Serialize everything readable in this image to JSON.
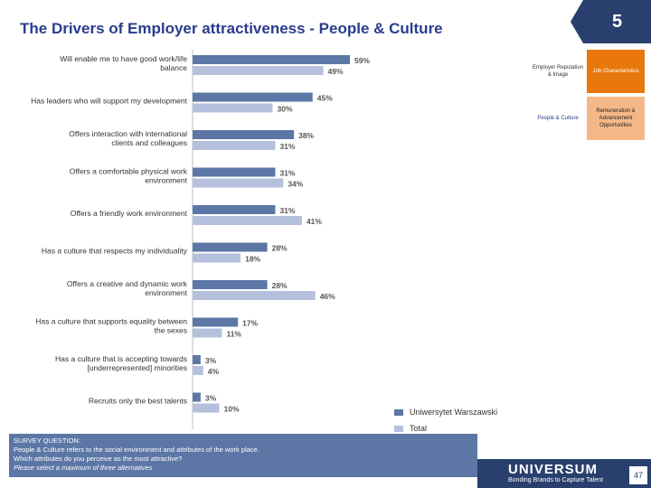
{
  "title": "The Drivers of Employer attractiveness - People & Culture",
  "page_badge": "5",
  "category_grid": [
    {
      "label": "Employer Reputation & Image",
      "style": "white"
    },
    {
      "label": "Job Characteristics",
      "style": "orange"
    },
    {
      "label": "People & Culture",
      "style": "white-blue"
    },
    {
      "label": "Remuneration & Advancement Opportunities",
      "style": "peach"
    }
  ],
  "chart_data": {
    "type": "bar",
    "orientation": "horizontal",
    "categories": [
      "Will enable me to have good work/life balance",
      "Has leaders who will support my development",
      "Offers interaction with international clients and colleagues",
      "Offers a comfortable physical work environment",
      "Offers a friendly work environment",
      "Has a culture that respects my individuality",
      "Offers a creative and dynamic work environment",
      "Has a culture that supports equality between the sexes",
      "Has a culture that is accepting towards [underrepresented] minorities",
      "Recruits only the best talents"
    ],
    "series": [
      {
        "name": "Uniwersytet Warszawski",
        "color": "#5c77a6",
        "values": [
          59,
          45,
          38,
          31,
          31,
          28,
          28,
          17,
          3,
          3
        ],
        "labels": [
          "59%",
          "45%",
          "38%",
          "31%",
          "31%",
          "28%",
          "28%",
          "17%",
          "3%",
          "3%"
        ]
      },
      {
        "name": "Total",
        "color": "#b4c0dc",
        "values": [
          49,
          30,
          31,
          34,
          41,
          18,
          46,
          11,
          4,
          10
        ],
        "labels": [
          "49%",
          "30%",
          "31%",
          "34%",
          "41%",
          "18%",
          "46%",
          "11%",
          "4%",
          "10%"
        ]
      }
    ],
    "xlim": [
      0,
      100
    ],
    "legend_position": "bottom-right"
  },
  "survey": {
    "heading": "SURVEY QUESTION:",
    "line1": "People & Culture refers to the social environment and attributes of the work place.",
    "line2": "Which attributes do you perceive as the most attractive?",
    "line3": "Please select a maximum of three alternatives"
  },
  "footer": {
    "logo": "UNIVERSUM",
    "tagline": "Bonding Brands to Capture Talent",
    "page_number": "47"
  }
}
